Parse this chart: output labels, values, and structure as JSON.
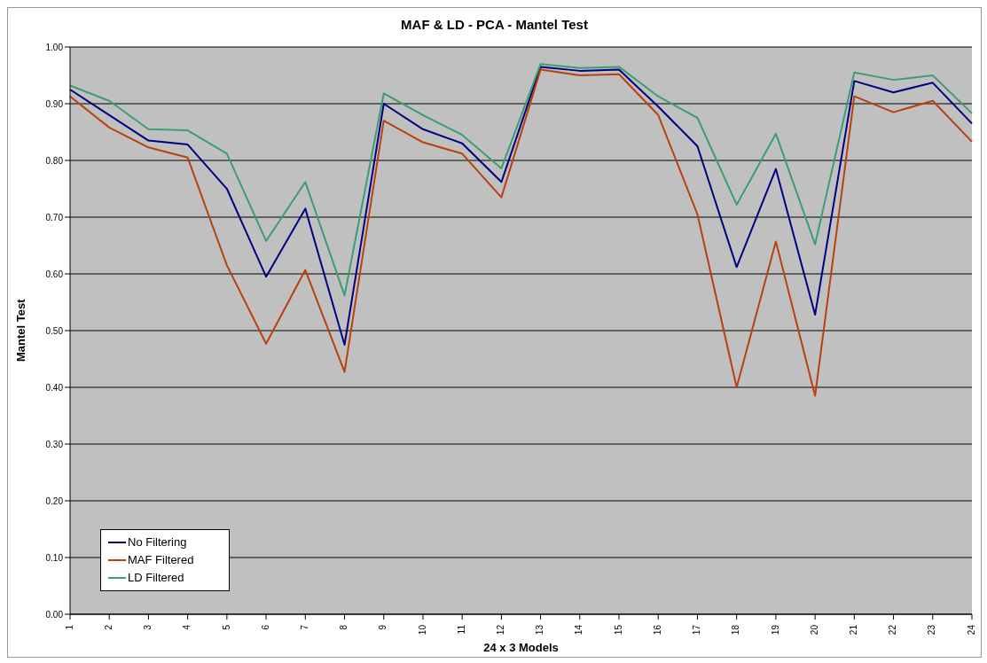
{
  "chart_data": {
    "type": "line",
    "title": "MAF & LD - PCA - Mantel Test",
    "xlabel": "24 x 3 Models",
    "ylabel": "Mantel Test",
    "categories": [
      "1",
      "2",
      "3",
      "4",
      "5",
      "6",
      "7",
      "8",
      "9",
      "10",
      "11",
      "12",
      "13",
      "14",
      "15",
      "16",
      "17",
      "18",
      "19",
      "20",
      "21",
      "22",
      "23",
      "24"
    ],
    "series": [
      {
        "name": "No Filtering",
        "color": "#000080",
        "values": [
          0.925,
          0.88,
          0.835,
          0.828,
          0.75,
          0.595,
          0.715,
          0.475,
          0.9,
          0.855,
          0.83,
          0.762,
          0.965,
          0.958,
          0.96,
          0.895,
          0.825,
          0.612,
          0.785,
          0.528,
          0.94,
          0.92,
          0.937,
          0.865
        ]
      },
      {
        "name": "MAF Filtered",
        "color": "#b8410e",
        "values": [
          0.913,
          0.858,
          0.823,
          0.805,
          0.615,
          0.477,
          0.607,
          0.427,
          0.87,
          0.832,
          0.812,
          0.735,
          0.96,
          0.95,
          0.952,
          0.88,
          0.705,
          0.4,
          0.657,
          0.385,
          0.913,
          0.885,
          0.905,
          0.833
        ]
      },
      {
        "name": "LD Filtered",
        "color": "#3a9e73",
        "values": [
          0.932,
          0.905,
          0.855,
          0.853,
          0.812,
          0.658,
          0.762,
          0.562,
          0.918,
          0.88,
          0.845,
          0.786,
          0.97,
          0.963,
          0.965,
          0.913,
          0.875,
          0.722,
          0.847,
          0.652,
          0.955,
          0.942,
          0.95,
          0.883
        ]
      }
    ],
    "ylim": [
      0,
      1
    ],
    "yticks": [
      {
        "value": 0,
        "label": "0.00"
      },
      {
        "value": 0.1,
        "label": "0.10"
      },
      {
        "value": 0.2,
        "label": "0.20"
      },
      {
        "value": 0.3,
        "label": "0.30"
      },
      {
        "value": 0.4,
        "label": "0.40"
      },
      {
        "value": 0.5,
        "label": "0.50"
      },
      {
        "value": 0.6,
        "label": "0.60"
      },
      {
        "value": 0.7,
        "label": "0.70"
      },
      {
        "value": 0.8,
        "label": "0.80"
      },
      {
        "value": 0.9,
        "label": "0.90"
      },
      {
        "value": 1,
        "label": "1.00"
      }
    ],
    "grid": "y",
    "legend": "bottom left",
    "marker": "none",
    "line_style": "solid"
  }
}
